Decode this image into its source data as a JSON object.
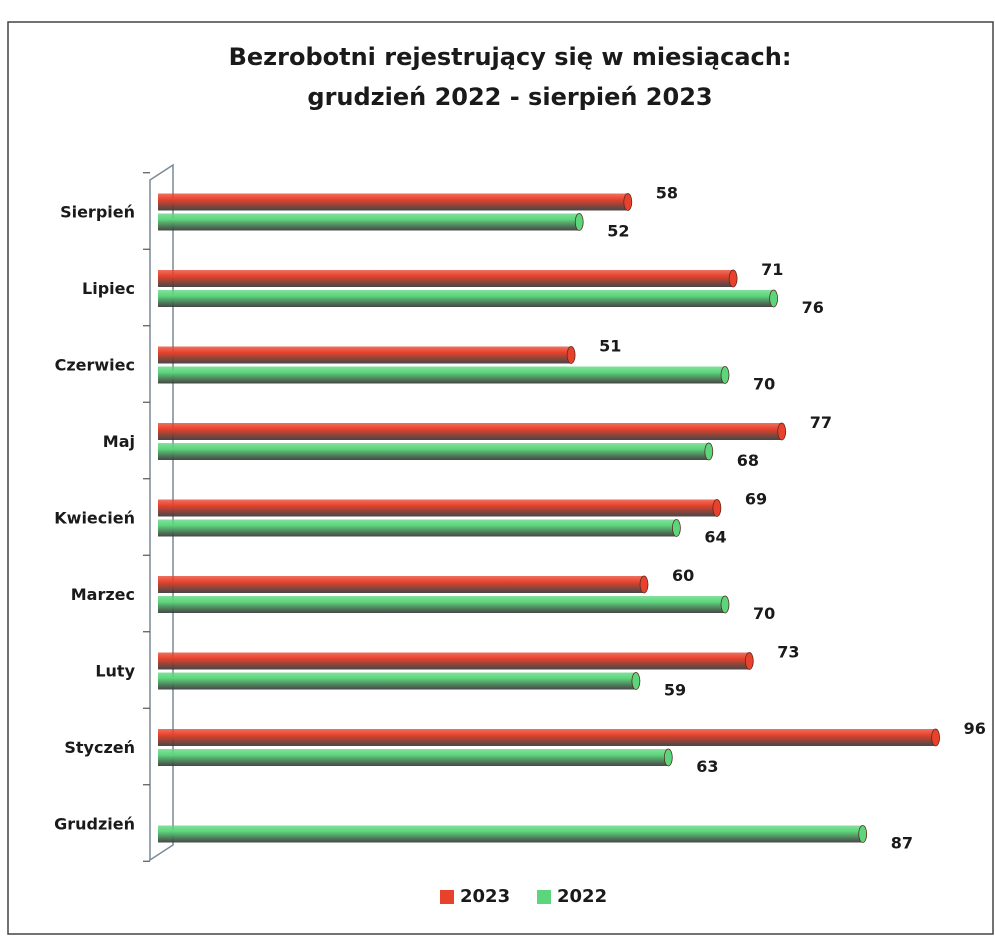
{
  "chart_data": {
    "type": "hbar",
    "title": [
      "Bezrobotni rejestrujący się w miesiącach:",
      "grudzień 2022 - sierpień 2023"
    ],
    "categories": [
      "Sierpień",
      "Lipiec",
      "Czerwiec",
      "Maj",
      "Kwiecień",
      "Marzec",
      "Luty",
      "Styczeń",
      "Grudzień"
    ],
    "series": [
      {
        "name": "2023",
        "color": "#e8422c",
        "values": [
          58,
          71,
          51,
          77,
          69,
          60,
          73,
          96,
          null
        ]
      },
      {
        "name": "2022",
        "color": "#5cd67c",
        "values": [
          52,
          76,
          70,
          68,
          64,
          70,
          59,
          63,
          87
        ]
      }
    ],
    "xlim": [
      0,
      100
    ],
    "legend": "bottom"
  }
}
